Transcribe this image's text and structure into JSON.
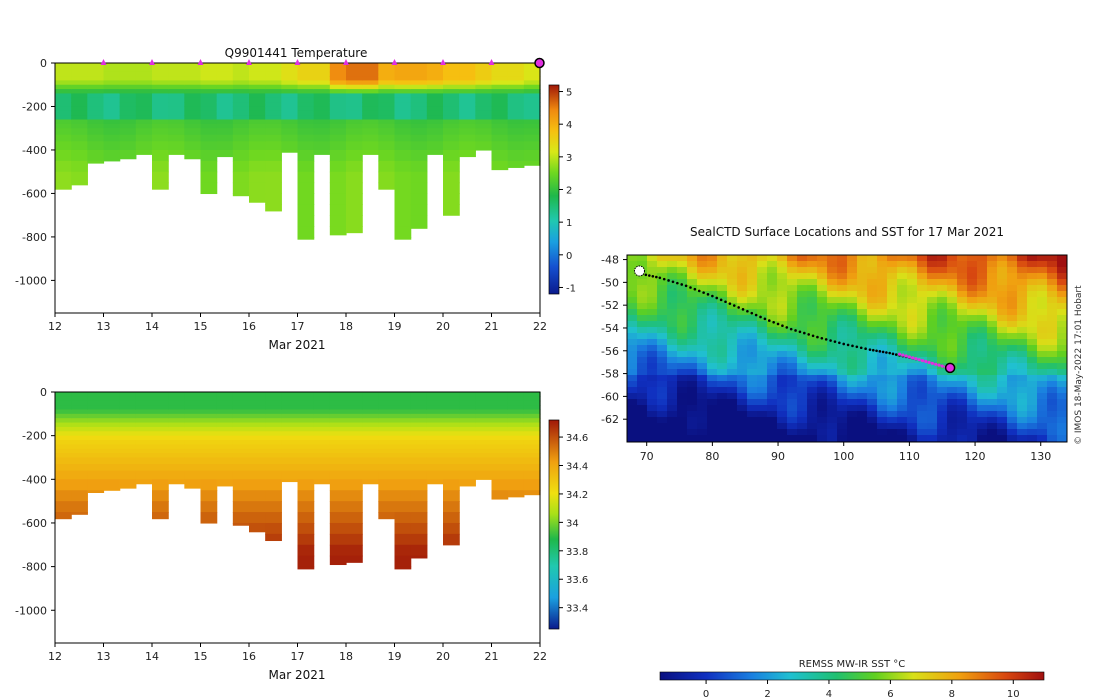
{
  "chart_data": [
    {
      "type": "heatmap",
      "id": "temperature",
      "title": "Q9901441  Temperature",
      "xlabel": "Mar 2021",
      "ylabel": "",
      "xlim": [
        12,
        22
      ],
      "ylim": [
        -1150,
        0
      ],
      "xticks": [
        12,
        13,
        14,
        15,
        16,
        17,
        18,
        19,
        20,
        21,
        22
      ],
      "yticks": [
        0,
        -200,
        -400,
        -600,
        -800,
        -1000
      ],
      "colorbar": {
        "min": -1.2,
        "max": 5.2,
        "ticks": [
          5,
          4,
          3,
          2,
          1,
          0,
          -1
        ]
      },
      "surface_layer_values": [
        3.0,
        3.0,
        2.9,
        2.9,
        3.0,
        3.0,
        3.1,
        3.0,
        3.1,
        3.3,
        3.5,
        4.4,
        4.6,
        4.0,
        4.1,
        4.0,
        3.8,
        3.6,
        3.4,
        3.2
      ],
      "profile_days": [
        12.0,
        13.0,
        14.0,
        15.0,
        16.0,
        17.0,
        18.0,
        19.0,
        20.0,
        21.0
      ],
      "current_profile_day": 22.0,
      "profiles_max_depth": [
        -580,
        -560,
        -460,
        -450,
        -440,
        -420,
        -580,
        -420,
        -440,
        -600,
        -430,
        -610,
        -640,
        -680,
        -410,
        -810,
        -420,
        -790,
        -780,
        -420,
        -580,
        -810,
        -760,
        -420,
        -700,
        -430,
        -400,
        -490,
        -480,
        -470
      ]
    },
    {
      "type": "heatmap",
      "id": "salinity",
      "title": "",
      "xlabel": "Mar 2021",
      "ylabel": "",
      "xlim": [
        12,
        22
      ],
      "ylim": [
        -1150,
        0
      ],
      "xticks": [
        12,
        13,
        14,
        15,
        16,
        17,
        18,
        19,
        20,
        21,
        22
      ],
      "yticks": [
        0,
        -200,
        -400,
        -600,
        -800,
        -1000
      ],
      "colorbar": {
        "min": 33.25,
        "max": 34.72,
        "ticks": [
          34.6,
          34.4,
          34.2,
          34,
          33.8,
          33.6,
          33.4
        ]
      },
      "surface_value": 33.9,
      "deep_value": 34.7,
      "profiles_max_depth": [
        -580,
        -560,
        -460,
        -450,
        -440,
        -420,
        -580,
        -420,
        -440,
        -600,
        -430,
        -610,
        -640,
        -680,
        -410,
        -810,
        -420,
        -790,
        -780,
        -420,
        -580,
        -810,
        -760,
        -420,
        -700,
        -430,
        -400,
        -490,
        -480,
        -470
      ]
    },
    {
      "type": "scatter",
      "id": "map",
      "title": "SealCTD Surface Locations and SST for 17 Mar 2021",
      "xlabel": "",
      "ylabel": "",
      "xlim": [
        67,
        134
      ],
      "ylim": [
        -64,
        -47.6
      ],
      "xticks": [
        70,
        80,
        90,
        100,
        110,
        120,
        130
      ],
      "yticks": [
        -48,
        -50,
        -52,
        -54,
        -56,
        -58,
        -60,
        -62
      ],
      "track": [
        [
          68.8,
          -49.2
        ],
        [
          72,
          -49.6
        ],
        [
          76,
          -50.3
        ],
        [
          80,
          -51.2
        ],
        [
          84,
          -52.2
        ],
        [
          88,
          -53.2
        ],
        [
          92,
          -54.1
        ],
        [
          96,
          -54.8
        ],
        [
          100,
          -55.4
        ],
        [
          104,
          -55.9
        ],
        [
          107,
          -56.2
        ],
        [
          110,
          -56.6
        ],
        [
          113,
          -57.0
        ],
        [
          116,
          -57.5
        ]
      ],
      "recent_track": [
        [
          108.5,
          -56.3
        ],
        [
          111,
          -56.7
        ],
        [
          113.5,
          -57.1
        ],
        [
          116,
          -57.5
        ]
      ],
      "current_position": [
        116.2,
        -57.5
      ],
      "colorbar": {
        "label": "REMSS MW-IR SST °C",
        "min": -1.5,
        "max": 11,
        "ticks": [
          0,
          2,
          4,
          6,
          8,
          10
        ]
      },
      "credit": "© IMOS 18-May-2022 17:01 Hobart"
    }
  ]
}
